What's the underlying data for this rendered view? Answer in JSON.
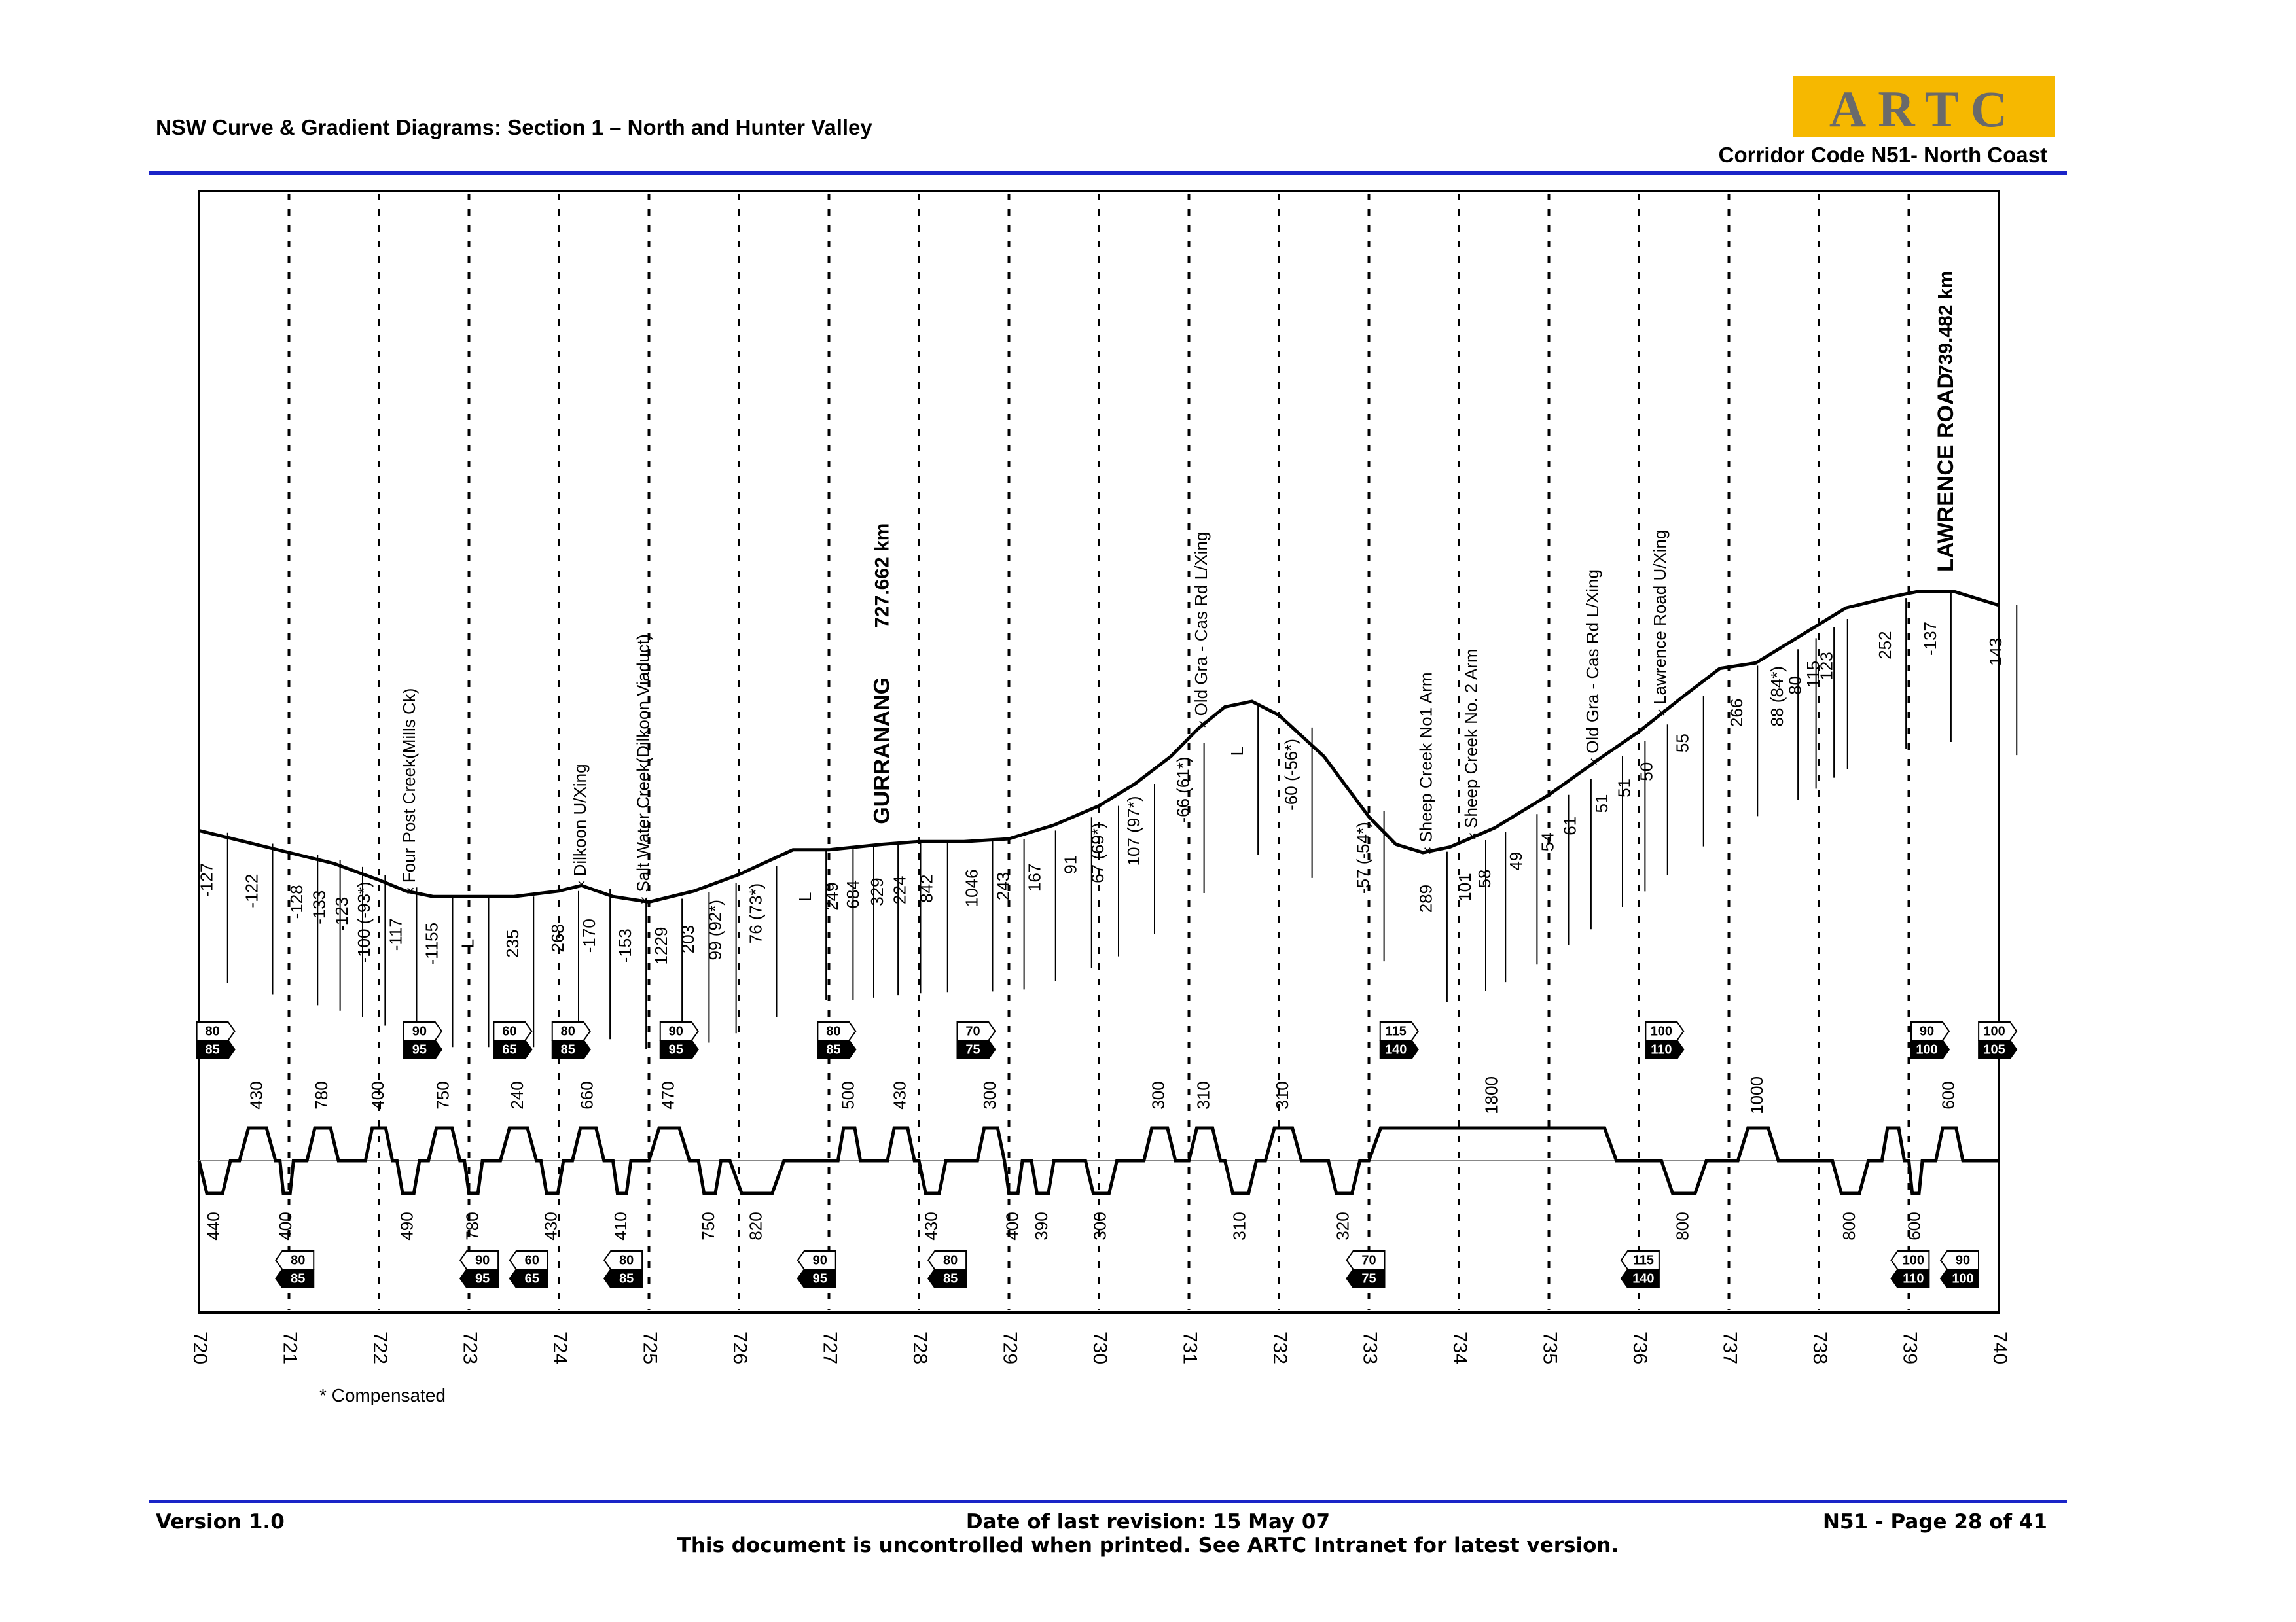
{
  "header": {
    "title": "NSW Curve & Gradient Diagrams: Section 1 – North and Hunter Valley",
    "corridor": "Corridor Code N51- North Coast",
    "logo_text": "ARTC"
  },
  "footer": {
    "version": "Version 1.0",
    "date": "Date of last revision: 15 May 07",
    "note": "This document is uncontrolled when printed. See ARTC Intranet for latest version.",
    "page": "N51 - Page 28 of 41"
  },
  "chart_data": {
    "type": "line",
    "km_range": [
      720,
      740
    ],
    "km_ticks": [
      "720",
      "721",
      "722",
      "723",
      "724",
      "725",
      "726",
      "727",
      "728",
      "729",
      "730",
      "731",
      "732",
      "733",
      "734",
      "735",
      "736",
      "737",
      "738",
      "739",
      "740"
    ],
    "footnote": "* Compensated",
    "gradient_profile": [
      [
        720.0,
        0.43
      ],
      [
        720.5,
        0.39
      ],
      [
        721.0,
        0.35
      ],
      [
        721.5,
        0.31
      ],
      [
        722.0,
        0.25
      ],
      [
        722.3,
        0.21
      ],
      [
        722.6,
        0.19
      ],
      [
        723.0,
        0.19
      ],
      [
        723.5,
        0.19
      ],
      [
        724.0,
        0.21
      ],
      [
        724.25,
        0.23
      ],
      [
        724.6,
        0.19
      ],
      [
        725.0,
        0.17
      ],
      [
        725.5,
        0.21
      ],
      [
        726.0,
        0.27
      ],
      [
        726.6,
        0.36
      ],
      [
        727.0,
        0.36
      ],
      [
        727.6,
        0.38
      ],
      [
        728.0,
        0.39
      ],
      [
        728.5,
        0.39
      ],
      [
        729.0,
        0.4
      ],
      [
        729.5,
        0.45
      ],
      [
        730.0,
        0.52
      ],
      [
        730.4,
        0.6
      ],
      [
        730.8,
        0.7
      ],
      [
        731.1,
        0.8
      ],
      [
        731.4,
        0.88
      ],
      [
        731.7,
        0.9
      ],
      [
        732.0,
        0.85
      ],
      [
        732.5,
        0.7
      ],
      [
        733.0,
        0.48
      ],
      [
        733.3,
        0.38
      ],
      [
        733.6,
        0.35
      ],
      [
        733.9,
        0.37
      ],
      [
        734.4,
        0.44
      ],
      [
        735.0,
        0.56
      ],
      [
        735.6,
        0.7
      ],
      [
        736.0,
        0.79
      ],
      [
        736.5,
        0.92
      ],
      [
        736.9,
        1.02
      ],
      [
        737.3,
        1.04
      ],
      [
        737.8,
        1.14
      ],
      [
        738.3,
        1.24
      ],
      [
        738.8,
        1.28
      ],
      [
        739.1,
        1.3
      ],
      [
        739.5,
        1.3
      ],
      [
        740.0,
        1.25
      ]
    ],
    "stations": [
      {
        "name": "GURRANANG",
        "km_label": "727.662 km",
        "km": 727.662
      },
      {
        "name": "LAWRENCE ROAD",
        "km_label": "739.482 km",
        "km": 739.482
      }
    ],
    "features": [
      {
        "label": "Four Post Creek(Mills Ck)",
        "km": 722.35
      },
      {
        "label": "Dilkoon U/Xing",
        "km": 724.25
      },
      {
        "label": "Salt Water Creek(Dilkoon Viaduct)",
        "km": 724.95
      },
      {
        "label": "Old Gra - Cas Rd L/Xing",
        "km": 731.15
      },
      {
        "label": "Sheep Creek No1 Arm",
        "km": 733.65
      },
      {
        "label": "Sheep Creek No. 2 Arm",
        "km": 734.15
      },
      {
        "label": "Old Gra - Cas Rd L/Xing",
        "km": 735.5
      },
      {
        "label": "Lawrence Road U/Xing",
        "km": 736.25
      }
    ],
    "gradients": [
      {
        "km": 720.1,
        "label": "-127"
      },
      {
        "km": 720.6,
        "label": "-122"
      },
      {
        "km": 721.1,
        "label": "-128"
      },
      {
        "km": 721.35,
        "label": "-133"
      },
      {
        "km": 721.6,
        "label": "-123"
      },
      {
        "km": 721.85,
        "label": "-100 (-93*)"
      },
      {
        "km": 722.2,
        "label": "-117"
      },
      {
        "km": 722.6,
        "label": "-1155"
      },
      {
        "km": 723.0,
        "label": "L"
      },
      {
        "km": 723.5,
        "label": "235"
      },
      {
        "km": 724.0,
        "label": "268"
      },
      {
        "km": 724.35,
        "label": "-170"
      },
      {
        "km": 724.75,
        "label": "-153"
      },
      {
        "km": 725.15,
        "label": "1229"
      },
      {
        "km": 725.45,
        "label": "203"
      },
      {
        "km": 725.75,
        "label": "99 (92*)"
      },
      {
        "km": 726.2,
        "label": "76 (73*)"
      },
      {
        "km": 726.75,
        "label": "L"
      },
      {
        "km": 727.05,
        "label": "249"
      },
      {
        "km": 727.28,
        "label": "684"
      },
      {
        "km": 727.55,
        "label": "329"
      },
      {
        "km": 727.8,
        "label": "224"
      },
      {
        "km": 728.1,
        "label": "842"
      },
      {
        "km": 728.6,
        "label": "1046"
      },
      {
        "km": 728.95,
        "label": "243"
      },
      {
        "km": 729.3,
        "label": "167"
      },
      {
        "km": 729.7,
        "label": "91"
      },
      {
        "km": 730.0,
        "label": "67 (69*)"
      },
      {
        "km": 730.4,
        "label": "107 (97*)"
      },
      {
        "km": 730.95,
        "label": "-66 (61*)"
      },
      {
        "km": 731.55,
        "label": "L"
      },
      {
        "km": 732.15,
        "label": "-60 (-56*)"
      },
      {
        "km": 732.95,
        "label": "-57 (-54*)"
      },
      {
        "km": 733.65,
        "label": "289"
      },
      {
        "km": 734.08,
        "label": "101"
      },
      {
        "km": 734.3,
        "label": "58"
      },
      {
        "km": 734.65,
        "label": "49"
      },
      {
        "km": 735.0,
        "label": "54"
      },
      {
        "km": 735.25,
        "label": "61"
      },
      {
        "km": 735.6,
        "label": "51"
      },
      {
        "km": 735.85,
        "label": "51"
      },
      {
        "km": 736.1,
        "label": "50"
      },
      {
        "km": 736.5,
        "label": "55"
      },
      {
        "km": 737.1,
        "label": "266"
      },
      {
        "km": 737.55,
        "label": "88 (84*)"
      },
      {
        "km": 737.75,
        "label": "80"
      },
      {
        "km": 737.95,
        "label": "115"
      },
      {
        "km": 738.1,
        "label": "123"
      },
      {
        "km": 738.75,
        "label": "252"
      },
      {
        "km": 739.25,
        "label": "-137"
      },
      {
        "km": 739.98,
        "label": "143"
      }
    ],
    "curves": [
      {
        "start": 720.0,
        "end": 720.35,
        "dir": "down",
        "radius": "440"
      },
      {
        "start": 720.45,
        "end": 720.85,
        "dir": "up",
        "radius": "430"
      },
      {
        "start": 720.9,
        "end": 721.05,
        "dir": "down",
        "radius": "400"
      },
      {
        "start": 721.2,
        "end": 721.55,
        "dir": "up",
        "radius": "780"
      },
      {
        "start": 721.85,
        "end": 722.15,
        "dir": "up",
        "radius": "400"
      },
      {
        "start": 722.2,
        "end": 722.45,
        "dir": "down",
        "radius": "490"
      },
      {
        "start": 722.55,
        "end": 722.9,
        "dir": "up",
        "radius": "750"
      },
      {
        "start": 722.95,
        "end": 723.15,
        "dir": "down",
        "radius": "780"
      },
      {
        "start": 723.35,
        "end": 723.75,
        "dir": "up",
        "radius": "240"
      },
      {
        "start": 723.8,
        "end": 724.05,
        "dir": "down",
        "radius": "430"
      },
      {
        "start": 724.15,
        "end": 724.5,
        "dir": "up",
        "radius": "660"
      },
      {
        "start": 724.6,
        "end": 724.8,
        "dir": "down",
        "radius": "410"
      },
      {
        "start": 725.0,
        "end": 725.45,
        "dir": "up",
        "radius": "470"
      },
      {
        "start": 725.55,
        "end": 725.8,
        "dir": "down",
        "radius": "750"
      },
      {
        "start": 725.9,
        "end": 726.5,
        "dir": "down",
        "radius": "820"
      },
      {
        "start": 727.1,
        "end": 727.35,
        "dir": "up",
        "radius": "500"
      },
      {
        "start": 727.65,
        "end": 727.95,
        "dir": "up",
        "radius": "430"
      },
      {
        "start": 728.0,
        "end": 728.3,
        "dir": "down",
        "radius": "430"
      },
      {
        "start": 728.65,
        "end": 728.95,
        "dir": "up",
        "radius": "300"
      },
      {
        "start": 728.95,
        "end": 729.15,
        "dir": "down",
        "radius": "400"
      },
      {
        "start": 729.25,
        "end": 729.5,
        "dir": "down",
        "radius": "390"
      },
      {
        "start": 729.85,
        "end": 730.2,
        "dir": "down",
        "radius": "300"
      },
      {
        "start": 730.5,
        "end": 730.85,
        "dir": "up",
        "radius": "300"
      },
      {
        "start": 731.0,
        "end": 731.35,
        "dir": "up",
        "radius": "310"
      },
      {
        "start": 731.4,
        "end": 731.75,
        "dir": "down",
        "radius": "310"
      },
      {
        "start": 731.85,
        "end": 732.25,
        "dir": "up",
        "radius": "310"
      },
      {
        "start": 732.55,
        "end": 732.9,
        "dir": "down",
        "radius": "320"
      },
      {
        "start": 733.0,
        "end": 735.75,
        "dir": "up",
        "radius": "1800"
      },
      {
        "start": 736.25,
        "end": 736.75,
        "dir": "down",
        "radius": "800"
      },
      {
        "start": 737.1,
        "end": 737.55,
        "dir": "up",
        "radius": "1000"
      },
      {
        "start": 738.15,
        "end": 738.55,
        "dir": "down",
        "radius": "800"
      },
      {
        "start": 738.7,
        "end": 738.95,
        "dir": "up",
        "radius": ""
      },
      {
        "start": 739.0,
        "end": 739.15,
        "dir": "down",
        "radius": "600"
      },
      {
        "start": 739.3,
        "end": 739.6,
        "dir": "up",
        "radius": "600"
      }
    ],
    "speed_boards_up": [
      {
        "km": 720.15,
        "top": "80",
        "bottom": "85"
      },
      {
        "km": 722.45,
        "top": "90",
        "bottom": "95"
      },
      {
        "km": 723.45,
        "top": "60",
        "bottom": "65"
      },
      {
        "km": 724.1,
        "top": "80",
        "bottom": "85"
      },
      {
        "km": 725.3,
        "top": "90",
        "bottom": "95"
      },
      {
        "km": 727.05,
        "top": "80",
        "bottom": "85"
      },
      {
        "km": 728.6,
        "top": "70",
        "bottom": "75"
      },
      {
        "km": 733.3,
        "top": "115",
        "bottom": "140"
      },
      {
        "km": 736.25,
        "top": "100",
        "bottom": "110"
      },
      {
        "km": 739.2,
        "top": "90",
        "bottom": "100"
      },
      {
        "km": 739.95,
        "top": "100",
        "bottom": "105"
      }
    ],
    "speed_boards_down": [
      {
        "km": 721.1,
        "top": "80",
        "bottom": "85"
      },
      {
        "km": 723.15,
        "top": "90",
        "bottom": "95"
      },
      {
        "km": 723.7,
        "top": "60",
        "bottom": "65"
      },
      {
        "km": 724.75,
        "top": "80",
        "bottom": "85"
      },
      {
        "km": 726.9,
        "top": "90",
        "bottom": "95"
      },
      {
        "km": 728.35,
        "top": "80",
        "bottom": "85"
      },
      {
        "km": 733.0,
        "top": "70",
        "bottom": "75"
      },
      {
        "km": 736.05,
        "top": "115",
        "bottom": "140"
      },
      {
        "km": 739.05,
        "top": "100",
        "bottom": "110"
      },
      {
        "km": 739.6,
        "top": "90",
        "bottom": "100"
      }
    ]
  }
}
